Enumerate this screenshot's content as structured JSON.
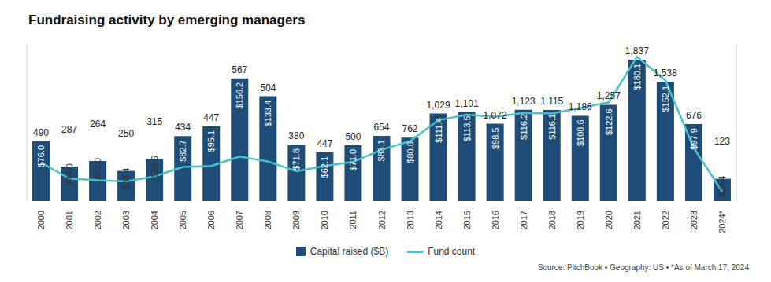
{
  "chart_data": {
    "type": "bar",
    "title": "Fundraising activity by emerging managers",
    "categories": [
      "2000",
      "2001",
      "2002",
      "2003",
      "2004",
      "2005",
      "2006",
      "2007",
      "2008",
      "2009",
      "2010",
      "2011",
      "2012",
      "2013",
      "2014",
      "2015",
      "2016",
      "2017",
      "2018",
      "2019",
      "2020",
      "2021",
      "2022",
      "2023",
      "2024*"
    ],
    "series": [
      {
        "name": "Capital raised ($B)",
        "type": "bar",
        "color": "#1e4d78",
        "values": [
          76.0,
          44.0,
          51.0,
          38.4,
          53.6,
          82.7,
          95.1,
          156.2,
          133.4,
          71.8,
          62.1,
          71.0,
          83.1,
          80.8,
          111.4,
          113.5,
          98.5,
          116.2,
          116.1,
          108.6,
          122.6,
          180.1,
          152.1,
          97.9,
          28.4
        ],
        "value_labels": [
          "$76.0",
          "$44.0",
          "$51.0",
          "$38.4",
          "$53.6",
          "$82.7",
          "$95.1",
          "$156.2",
          "$133.4",
          "$71.8",
          "$62.1",
          "$71.0",
          "$83.1",
          "$80.8",
          "$111.4",
          "$113.5",
          "$98.5",
          "$116.2",
          "$116.1",
          "$108.6",
          "$122.6",
          "$180.1",
          "$152.1",
          "$97.9",
          "$28.4"
        ]
      },
      {
        "name": "Fund count",
        "type": "line",
        "axis": "y2",
        "color": "#4cc1cd",
        "values": [
          490,
          287,
          264,
          250,
          315,
          434,
          447,
          567,
          504,
          380,
          447,
          500,
          654,
          762,
          1029,
          1101,
          1072,
          1123,
          1115,
          1186,
          1257,
          1837,
          1538,
          676,
          123
        ],
        "value_labels": [
          "490",
          "287",
          "264",
          "250",
          "315",
          "434",
          "447",
          "567",
          "504",
          "380",
          "447",
          "500",
          "654",
          "762",
          "1,029",
          "1,101",
          "1,072",
          "1,123",
          "1,115",
          "1,186",
          "1,257",
          "1,837",
          "1,538",
          "676",
          "123"
        ]
      }
    ],
    "ylim": [
      0,
      200
    ],
    "yticks": [],
    "y2lim": [
      0,
      2000
    ],
    "y2ticks": [],
    "data_labels": true,
    "tick_labels": "x",
    "legend": "bottom",
    "annotations": [
      "Source: PitchBook • Geography: US • *As of March 17, 2024"
    ]
  }
}
